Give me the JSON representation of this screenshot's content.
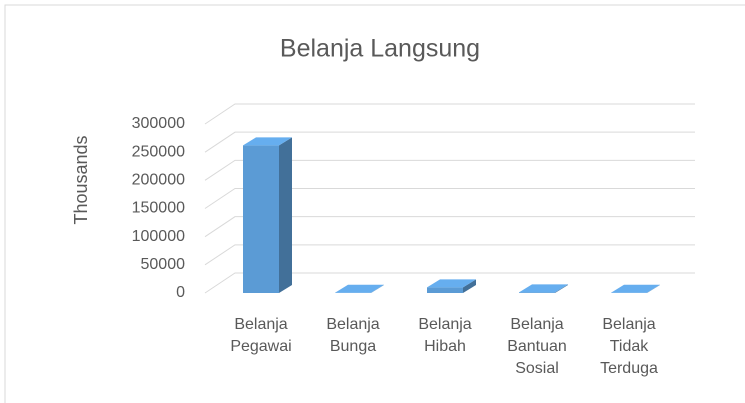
{
  "chart_data": {
    "type": "bar3d",
    "title": "Belanja Langsung",
    "y_label": "Thousands",
    "categories": [
      "Belanja Pegawai",
      "Belanja Bunga",
      "Belanja Hibah",
      "Belanja Bantuan Sosial",
      "Belanja Tidak Terduga"
    ],
    "values": [
      262000,
      500,
      10000,
      1000,
      500
    ],
    "color": "#5b9bd5",
    "ylim": [
      0,
      300000
    ],
    "yticks": [
      0,
      50000,
      100000,
      150000,
      200000,
      250000,
      300000
    ],
    "grid": true
  }
}
